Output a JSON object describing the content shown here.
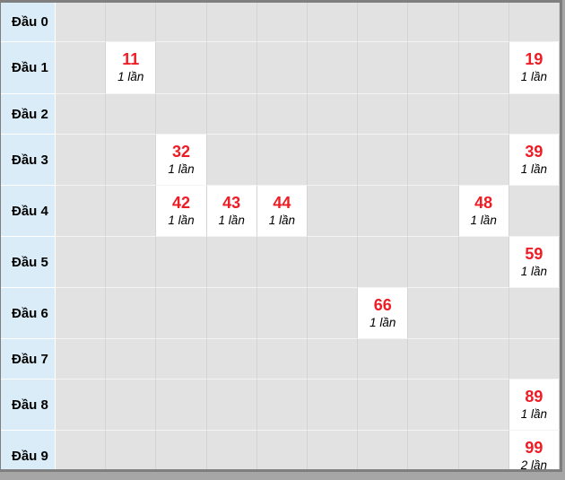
{
  "colors": {
    "accent_red": "#ee1c25",
    "label_bg": "#daecf7",
    "cell_bg": "#e2e2e2",
    "hit_bg": "#ffffff",
    "frame": "#7f7f7f",
    "page_bg": "#a6a6a6",
    "grid_line": "#d4d4d4",
    "row_line": "#f4f4f4",
    "label_line": "#ffffff",
    "text": "#000000"
  },
  "table": {
    "num_columns": 10,
    "rows": [
      {
        "label": "Đầu 0",
        "cells": []
      },
      {
        "label": "Đầu 1",
        "cells": [
          {
            "col": 1,
            "number": "11",
            "count": "1 lần"
          },
          {
            "col": 9,
            "number": "19",
            "count": "1 lần"
          }
        ]
      },
      {
        "label": "Đầu 2",
        "cells": []
      },
      {
        "label": "Đầu 3",
        "cells": [
          {
            "col": 2,
            "number": "32",
            "count": "1 lần"
          },
          {
            "col": 9,
            "number": "39",
            "count": "1 lần"
          }
        ]
      },
      {
        "label": "Đầu 4",
        "cells": [
          {
            "col": 2,
            "number": "42",
            "count": "1 lần"
          },
          {
            "col": 3,
            "number": "43",
            "count": "1 lần"
          },
          {
            "col": 4,
            "number": "44",
            "count": "1 lần"
          },
          {
            "col": 8,
            "number": "48",
            "count": "1 lần"
          }
        ]
      },
      {
        "label": "Đầu 5",
        "cells": [
          {
            "col": 9,
            "number": "59",
            "count": "1 lần"
          }
        ]
      },
      {
        "label": "Đầu 6",
        "cells": [
          {
            "col": 6,
            "number": "66",
            "count": "1 lần"
          }
        ]
      },
      {
        "label": "Đầu 7",
        "cells": []
      },
      {
        "label": "Đầu 8",
        "cells": [
          {
            "col": 9,
            "number": "89",
            "count": "1 lần"
          }
        ]
      },
      {
        "label": "Đầu 9",
        "cells": [
          {
            "col": 9,
            "number": "99",
            "count": "2 lần"
          }
        ]
      }
    ]
  },
  "chart_data": {
    "type": "table",
    "title": "",
    "row_headers": [
      "Đầu 0",
      "Đầu 1",
      "Đầu 2",
      "Đầu 3",
      "Đầu 4",
      "Đầu 5",
      "Đầu 6",
      "Đầu 7",
      "Đầu 8",
      "Đầu 9"
    ],
    "columns": [
      0,
      1,
      2,
      3,
      4,
      5,
      6,
      7,
      8,
      9
    ],
    "hits": [
      {
        "number": "11",
        "row": 1,
        "col": 1,
        "frequency_label": "1 lần",
        "frequency": 1
      },
      {
        "number": "19",
        "row": 1,
        "col": 9,
        "frequency_label": "1 lần",
        "frequency": 1
      },
      {
        "number": "32",
        "row": 3,
        "col": 2,
        "frequency_label": "1 lần",
        "frequency": 1
      },
      {
        "number": "39",
        "row": 3,
        "col": 9,
        "frequency_label": "1 lần",
        "frequency": 1
      },
      {
        "number": "42",
        "row": 4,
        "col": 2,
        "frequency_label": "1 lần",
        "frequency": 1
      },
      {
        "number": "43",
        "row": 4,
        "col": 3,
        "frequency_label": "1 lần",
        "frequency": 1
      },
      {
        "number": "44",
        "row": 4,
        "col": 4,
        "frequency_label": "1 lần",
        "frequency": 1
      },
      {
        "number": "48",
        "row": 4,
        "col": 8,
        "frequency_label": "1 lần",
        "frequency": 1
      },
      {
        "number": "59",
        "row": 5,
        "col": 9,
        "frequency_label": "1 lần",
        "frequency": 1
      },
      {
        "number": "66",
        "row": 6,
        "col": 6,
        "frequency_label": "1 lần",
        "frequency": 1
      },
      {
        "number": "89",
        "row": 8,
        "col": 9,
        "frequency_label": "1 lần",
        "frequency": 1
      },
      {
        "number": "99",
        "row": 9,
        "col": 9,
        "frequency_label": "2 lần",
        "frequency": 2
      }
    ]
  }
}
